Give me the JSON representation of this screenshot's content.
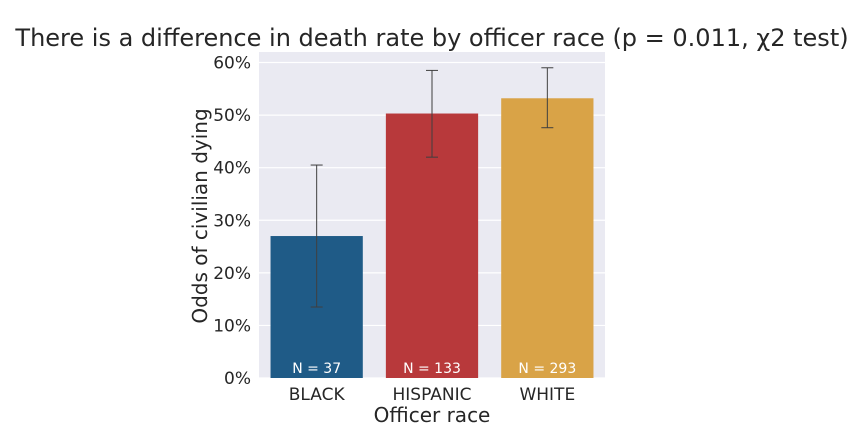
{
  "chart_data": {
    "type": "bar",
    "title": "There is a difference in death rate by officer race (p = 0.011, χ2 test)",
    "xlabel": "Officer race",
    "ylabel": "Odds of civilian dying",
    "categories": [
      "BLACK",
      "HISPANIC",
      "WHITE"
    ],
    "values": [
      0.27,
      0.503,
      0.532
    ],
    "error_low": [
      0.135,
      0.42,
      0.476
    ],
    "error_high": [
      0.405,
      0.585,
      0.59
    ],
    "bar_labels": [
      "N = 37",
      "N = 133",
      "N = 293"
    ],
    "colors": [
      "#1f5b87",
      "#b8393b",
      "#d9a347"
    ],
    "ylim": [
      0,
      0.62
    ],
    "yticks": [
      0,
      0.1,
      0.2,
      0.3,
      0.4,
      0.5,
      0.6
    ],
    "ytick_labels": [
      "0%",
      "10%",
      "20%",
      "30%",
      "40%",
      "50%",
      "60%"
    ],
    "grid": true,
    "background": "#eaeaf2"
  }
}
